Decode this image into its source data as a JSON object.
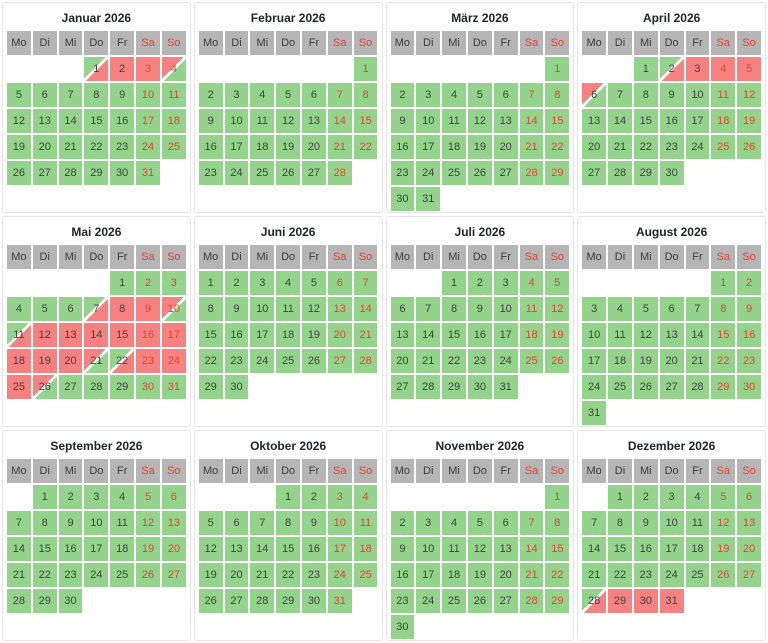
{
  "calendar": {
    "year": "2026",
    "weekdays": [
      {
        "label": "Mo",
        "weekend": false
      },
      {
        "label": "Di",
        "weekend": false
      },
      {
        "label": "Mi",
        "weekend": false
      },
      {
        "label": "Do",
        "weekend": false
      },
      {
        "label": "Fr",
        "weekend": false
      },
      {
        "label": "Sa",
        "weekend": true
      },
      {
        "label": "So",
        "weekend": true
      }
    ],
    "colors": {
      "free_bg": "#93d38b",
      "booked_bg": "#f58181",
      "header_bg": "#b5b5b5",
      "weekend_text": "#e8432e",
      "day_text": "#424242",
      "title_text": "#212529",
      "panel_border": "#e4e4e4"
    },
    "state_codes": {
      "free": "green full cell",
      "booked": "red full cell",
      "arrival": "diagonal split green top-left / red bottom-right",
      "departure": "diagonal split red top-left / green bottom-right"
    },
    "months": [
      {
        "title": "Januar 2026",
        "start": 3,
        "num_days": 31,
        "overrides": {
          "1": "arrival",
          "2": "booked",
          "3": "booked",
          "4": "departure"
        }
      },
      {
        "title": "Februar 2026",
        "start": 6,
        "num_days": 28,
        "overrides": {}
      },
      {
        "title": "März 2026",
        "start": 6,
        "num_days": 31,
        "overrides": {}
      },
      {
        "title": "April 2026",
        "start": 2,
        "num_days": 30,
        "overrides": {
          "2": "arrival",
          "3": "booked",
          "4": "booked",
          "5": "booked",
          "6": "departure"
        }
      },
      {
        "title": "Mai 2026",
        "start": 4,
        "num_days": 31,
        "overrides": {
          "7": "arrival",
          "8": "booked",
          "9": "booked",
          "10": "departure",
          "11": "arrival",
          "12": "booked",
          "13": "booked",
          "14": "booked",
          "15": "booked",
          "16": "booked",
          "17": "booked",
          "18": "booked",
          "19": "booked",
          "20": "booked",
          "21": "departure",
          "22": "arrival",
          "23": "booked",
          "24": "booked",
          "25": "booked",
          "26": "departure"
        }
      },
      {
        "title": "Juni 2026",
        "start": 0,
        "num_days": 30,
        "overrides": {}
      },
      {
        "title": "Juli 2026",
        "start": 2,
        "num_days": 31,
        "overrides": {}
      },
      {
        "title": "August 2026",
        "start": 5,
        "num_days": 31,
        "overrides": {}
      },
      {
        "title": "September 2026",
        "start": 1,
        "num_days": 30,
        "overrides": {}
      },
      {
        "title": "Oktober 2026",
        "start": 3,
        "num_days": 31,
        "overrides": {}
      },
      {
        "title": "November 2026",
        "start": 6,
        "num_days": 30,
        "overrides": {}
      },
      {
        "title": "Dezember 2026",
        "start": 1,
        "num_days": 31,
        "overrides": {
          "28": "arrival",
          "29": "booked",
          "30": "booked",
          "31": "booked"
        }
      }
    ]
  }
}
